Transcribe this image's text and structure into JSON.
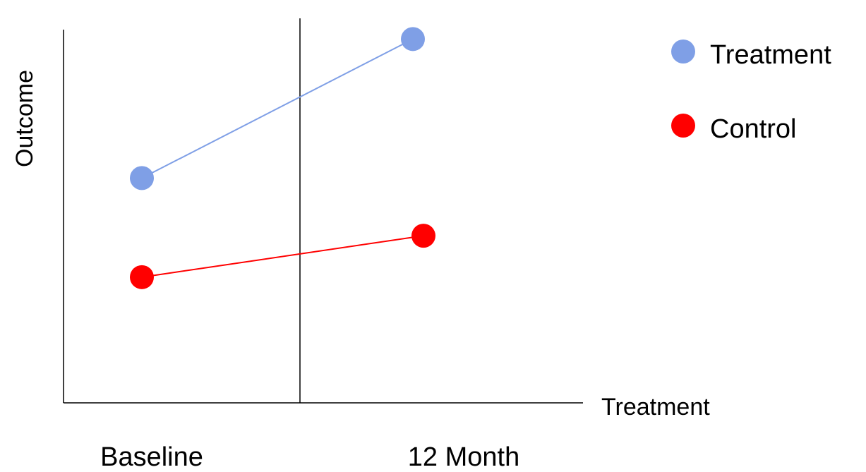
{
  "chart_data": {
    "type": "line",
    "categories": [
      "Baseline",
      "12 Month"
    ],
    "series": [
      {
        "name": "Treatment",
        "values": [
          76,
          123
        ],
        "color": "#7F9FE6"
      },
      {
        "name": "Control",
        "values": [
          42.5,
          56.5
        ],
        "color": "#FF0000"
      }
    ],
    "ylabel": "Outcome",
    "divider_label": "Treatment",
    "ylim": [
      0,
      130
    ],
    "grid": false,
    "legend_position": "top-right"
  }
}
